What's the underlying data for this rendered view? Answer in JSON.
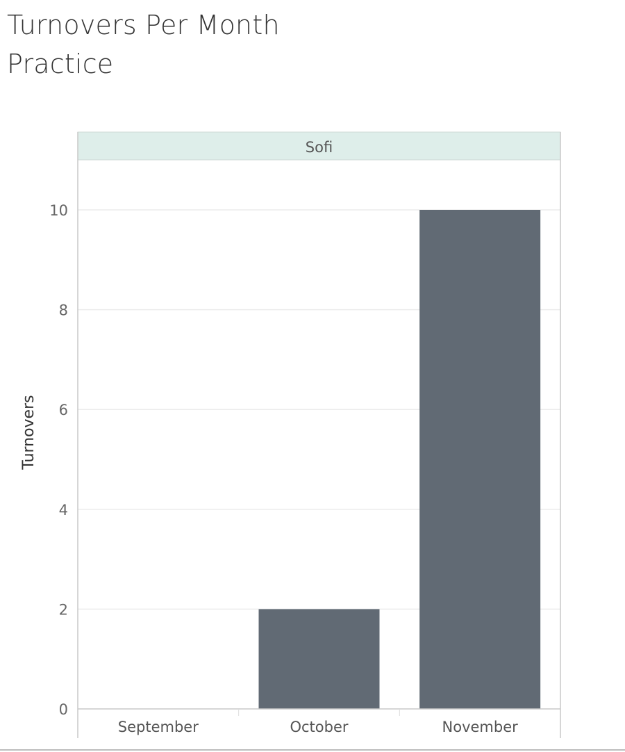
{
  "page_title_line1": "Turnovers Per Month",
  "page_title_line2": "Practice",
  "chart_data": {
    "type": "bar",
    "title": "Turnovers Per Month Practice",
    "panel_header": "Sofi",
    "categories": [
      "September",
      "October",
      "November"
    ],
    "series": [
      {
        "values": [
          0,
          2,
          10
        ]
      }
    ],
    "xlabel": "",
    "ylabel": "Turnovers",
    "ylim": [
      0,
      11
    ],
    "yticks": [
      0,
      2,
      4,
      6,
      8,
      10
    ],
    "grid": true,
    "legend": "none",
    "colors": {
      "bar": "#616a74",
      "panel_header_bg": "#deeeea",
      "grid": "#ebebeb",
      "axis": "#c8c8c8",
      "tick_text": "#666666",
      "label_text": "#333333"
    }
  }
}
